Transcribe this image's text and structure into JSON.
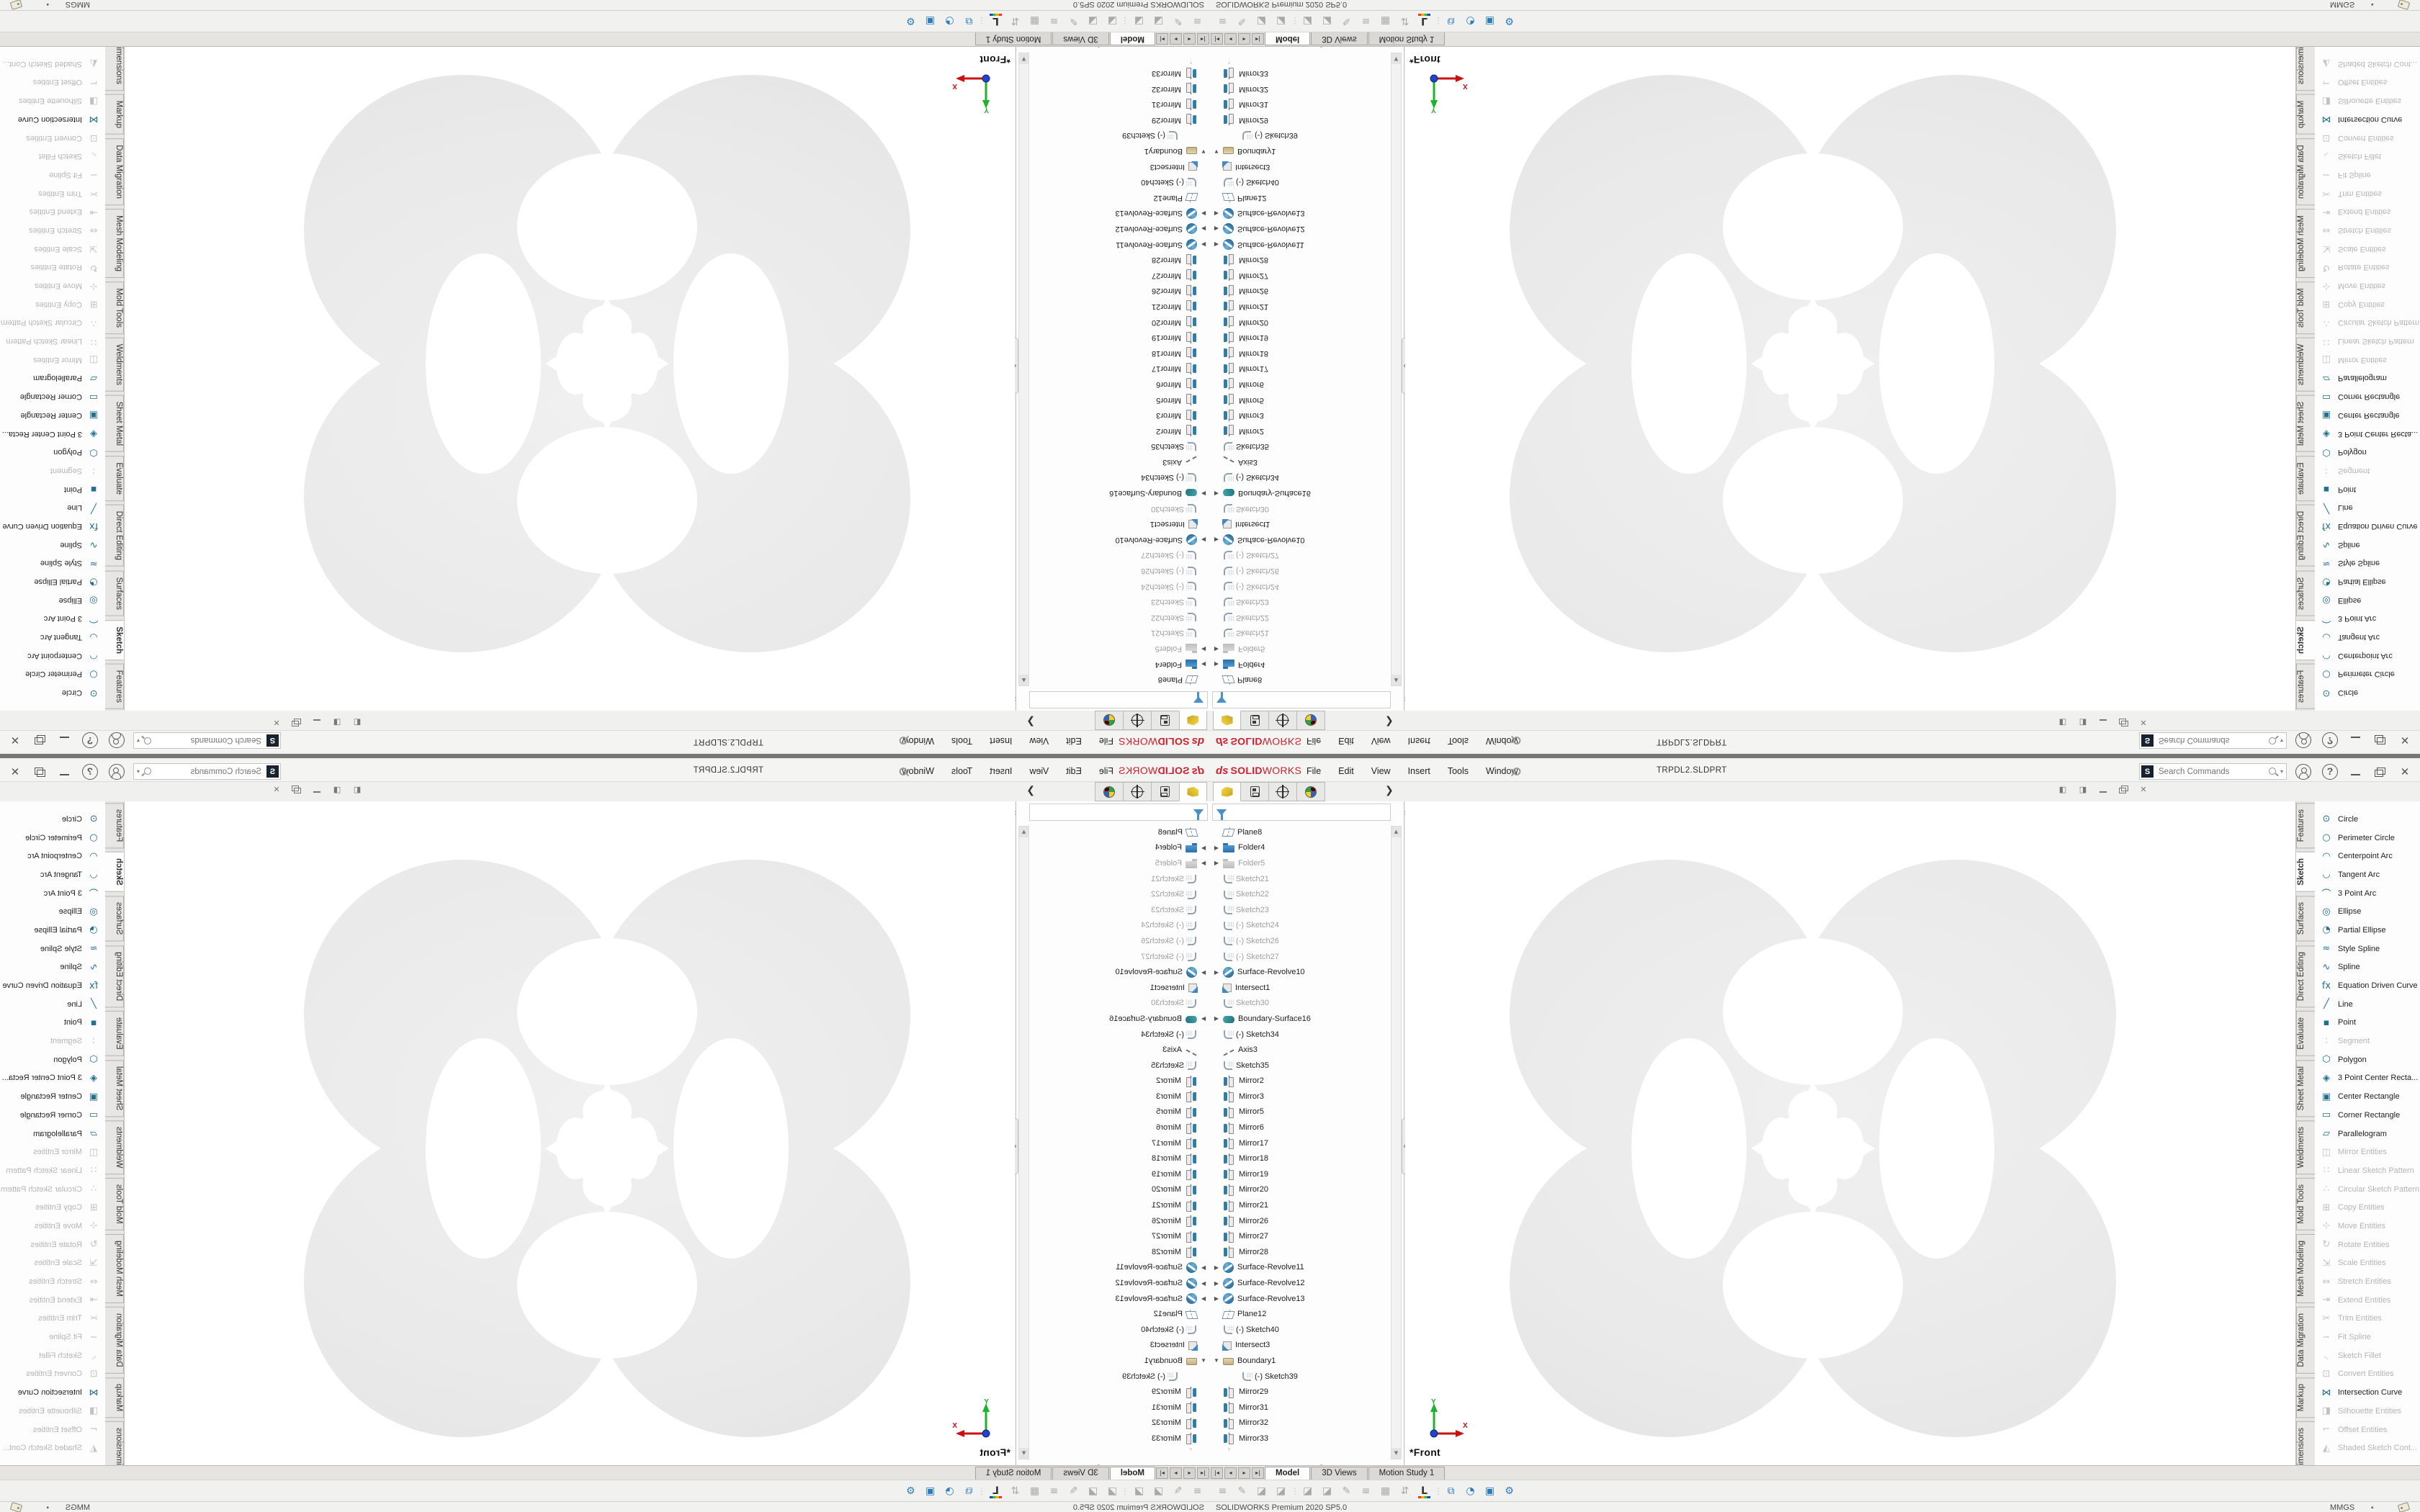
{
  "titlebar": {
    "logo_mark": "ds",
    "logo_solid": "SOLID",
    "logo_works": "WORKS",
    "menus": [
      "File",
      "Edit",
      "View",
      "Insert",
      "Tools",
      "Window"
    ],
    "filename": "TRPDL2.SLDPRT",
    "search_placeholder": "Search Commands",
    "window_buttons": [
      "minimize-button",
      "restore-button",
      "close-button"
    ]
  },
  "feature_tree": {
    "tabs": [
      {
        "name": "featuremanager-tab",
        "active": true
      },
      {
        "name": "propertymanager-tab",
        "active": false
      },
      {
        "name": "dimxpertmanager-tab",
        "active": false
      },
      {
        "name": "displaymanager-tab",
        "active": false
      }
    ],
    "flyout_arrow": "❯",
    "scroll_up": "▲",
    "scroll_down": "▼",
    "items": [
      {
        "label": "Plane8",
        "icon": "plane"
      },
      {
        "label": "Folder4",
        "icon": "folder",
        "arrow": "r"
      },
      {
        "label": "Folder5",
        "icon": "folder-gray",
        "arrow": "r",
        "dim": true
      },
      {
        "label": "Sketch21",
        "icon": "sketch",
        "dim": true
      },
      {
        "label": "Sketch22",
        "icon": "sketch",
        "dim": true
      },
      {
        "label": "Sketch23",
        "icon": "sketch",
        "dim": true
      },
      {
        "label": "(-) Sketch24",
        "icon": "sketch",
        "dim": true
      },
      {
        "label": "(-) Sketch26",
        "icon": "sketch",
        "dim": true
      },
      {
        "label": "(-) Sketch27",
        "icon": "sketch",
        "dim": true
      },
      {
        "label": "Surface-Revolve10",
        "icon": "revolve",
        "arrow": "r"
      },
      {
        "label": "Intersect1",
        "icon": "intersect"
      },
      {
        "label": "Sketch30",
        "icon": "sketch",
        "dim": true
      },
      {
        "label": "Boundary-Surface16",
        "icon": "bsurf",
        "arrow": "r"
      },
      {
        "label": "(-) Sketch34",
        "icon": "sketch"
      },
      {
        "label": "Axis3",
        "icon": "axis"
      },
      {
        "label": "Sketch35",
        "icon": "sketch"
      },
      {
        "label": "Mirror2",
        "icon": "mirror"
      },
      {
        "label": "Mirror3",
        "icon": "mirror"
      },
      {
        "label": "Mirror5",
        "icon": "mirror"
      },
      {
        "label": "Mirror6",
        "icon": "mirror"
      },
      {
        "label": "Mirror17",
        "icon": "mirror"
      },
      {
        "label": "Mirror18",
        "icon": "mirror"
      },
      {
        "label": "Mirror19",
        "icon": "mirror"
      },
      {
        "label": "Mirror20",
        "icon": "mirror"
      },
      {
        "label": "Mirror21",
        "icon": "mirror"
      },
      {
        "label": "Mirror26",
        "icon": "mirror"
      },
      {
        "label": "Mirror27",
        "icon": "mirror"
      },
      {
        "label": "Mirror28",
        "icon": "mirror"
      },
      {
        "label": "Surface-Revolve11",
        "icon": "revolve",
        "arrow": "r"
      },
      {
        "label": "Surface-Revolve12",
        "icon": "revolve",
        "arrow": "r"
      },
      {
        "label": "Surface-Revolve13",
        "icon": "revolve",
        "arrow": "r"
      },
      {
        "label": "Plane12",
        "icon": "plane"
      },
      {
        "label": "(-) Sketch40",
        "icon": "sketch"
      },
      {
        "label": "Intersect3",
        "icon": "intersect"
      },
      {
        "label": "Boundary1",
        "icon": "boundary",
        "arrow": "d"
      },
      {
        "label": "(-) Sketch39",
        "icon": "sketch",
        "sub": true
      },
      {
        "label": "Mirror29",
        "icon": "mirror"
      },
      {
        "label": "Mirror31",
        "icon": "mirror"
      },
      {
        "label": "Mirror32",
        "icon": "mirror"
      },
      {
        "label": "Mirror33",
        "icon": "mirror"
      },
      {
        "label": "",
        "icon": "mirror",
        "partial": true
      }
    ]
  },
  "command_icons": [
    {
      "name": "save-icon",
      "glyph": "▤",
      "color": "#41729f"
    },
    {
      "name": "run-document-icon",
      "glyph": "▷",
      "color": "#808080"
    },
    {
      "name": "dropdown-caret-icon",
      "glyph": "▾",
      "color": "#666666",
      "small": true
    },
    {
      "name": "view-front-cube-icon",
      "glyph": "◧",
      "color": "#6fa8cc",
      "pressed": true
    },
    {
      "name": "view-back-cube-icon",
      "glyph": "◱",
      "color": "#6fa8cc"
    },
    {
      "name": "view-left-cube-icon",
      "glyph": "◰",
      "color": "#6fa8cc"
    },
    {
      "name": "view-right-cube-icon",
      "glyph": "◳",
      "color": "#6fa8cc"
    },
    {
      "name": "view-top-cube-icon",
      "glyph": "◲",
      "color": "#6fa8cc"
    },
    {
      "name": "view-bottom-cube-icon",
      "glyph": "◫",
      "color": "#6fa8cc"
    },
    {
      "name": "view-iso-cube-icon",
      "glyph": "⬓",
      "color": "#6fa8cc"
    },
    {
      "name": "view-isometric-icon",
      "glyph": "◆",
      "color": "#8cbcd9"
    },
    {
      "name": "view-dimetric-icon",
      "glyph": "◇",
      "color": "#8cbcd9"
    },
    {
      "name": "view-trimetric-icon",
      "glyph": "◆",
      "color": "#b7d3e6"
    },
    {
      "name": "normal-to-icon",
      "glyph": "⇩",
      "color": "#6fa8cc"
    },
    {
      "name": "display-update-icon",
      "glyph": "⟳",
      "color": "#888888"
    },
    {
      "name": "section-view-icon",
      "glyph": "◐",
      "color": "#8cbcd9"
    },
    {
      "name": "appearance-sphere-icon",
      "glyph": "◉",
      "color": "#87b7d7"
    },
    {
      "name": "gap",
      "gap": true
    },
    {
      "name": "3d-drawing-view-icon",
      "glyph": "3D",
      "color": "#666666",
      "text": true
    },
    {
      "name": "separator",
      "sep": true
    },
    {
      "name": "sketch-pencil-icon",
      "glyph": "✎",
      "color": "#aaaaaa"
    },
    {
      "name": "sketch-arc-icon",
      "glyph": "◠",
      "color": "#aaaaaa"
    },
    {
      "name": "sketch-spline-icon",
      "glyph": "∿",
      "color": "#aaaaaa"
    },
    {
      "name": "sketch-circle-icon",
      "glyph": "○",
      "color": "#aaaaaa"
    },
    {
      "name": "sketch-point-icon",
      "glyph": "+",
      "color": "#aaaaaa"
    },
    {
      "name": "rapid-sketch-icon",
      "glyph": "30",
      "color": "#444444",
      "pressed": true,
      "text": true
    },
    {
      "name": "arcs-icon",
      "glyph": ") (",
      "color": "#999999",
      "text": true
    },
    {
      "name": "instant3d-icon",
      "glyph": "9",
      "color": "#999999",
      "text": true
    },
    {
      "name": "grid-icon",
      "glyph": "▦",
      "color": "#6b6b6b",
      "pressed": true
    },
    {
      "name": "orientation-sphere-icon",
      "glyph": "◍",
      "color": "#888888"
    },
    {
      "name": "dropdown-caret-icon",
      "glyph": "▾",
      "color": "#666666",
      "small": true
    },
    {
      "name": "motion-sphere-icon",
      "glyph": "✹",
      "color": "#666666",
      "pressed": true
    },
    {
      "name": "appearance-egg-icon",
      "glyph": "●",
      "color": "#3e88c0"
    },
    {
      "name": "scene-sphere-icon",
      "glyph": "◕",
      "color": "#888888"
    },
    {
      "name": "camera-cylinder-icon",
      "glyph": "⬒",
      "color": "#8cbcd9"
    }
  ],
  "doc_controls": [
    "doc-pane-left-icon",
    "doc-pane-right-icon",
    "doc-minimize-button",
    "doc-restore-button",
    "doc-close-button"
  ],
  "graphics": {
    "view_label": "*Front",
    "triad_x_label": "X",
    "triad_y_label": "Y"
  },
  "sidebar_panel": {
    "items": [
      {
        "label": "Circle",
        "glyph": "⊙",
        "enabled": true
      },
      {
        "label": "Perimeter Circle",
        "glyph": "○",
        "enabled": true
      },
      {
        "label": "Centerpoint Arc",
        "glyph": "◠",
        "enabled": true
      },
      {
        "label": "Tangent Arc",
        "glyph": "◡",
        "enabled": true
      },
      {
        "label": "3 Point Arc",
        "glyph": "⌒",
        "enabled": true
      },
      {
        "label": "Ellipse",
        "glyph": "◎",
        "enabled": true
      },
      {
        "label": "Partial Ellipse",
        "glyph": "◔",
        "enabled": true
      },
      {
        "label": "Style Spline",
        "glyph": "≈",
        "enabled": true
      },
      {
        "label": "Spline",
        "glyph": "∿",
        "enabled": true
      },
      {
        "label": "Equation Driven Curve",
        "glyph": "fx",
        "enabled": true
      },
      {
        "label": "Line",
        "glyph": "╱",
        "enabled": true
      },
      {
        "label": "Point",
        "glyph": "▪",
        "enabled": true
      },
      {
        "label": "Segment",
        "glyph": "∶",
        "enabled": false
      },
      {
        "label": "Polygon",
        "glyph": "⬡",
        "enabled": true
      },
      {
        "label": "3 Point Center Recta...",
        "glyph": "◈",
        "enabled": true
      },
      {
        "label": "Center Rectangle",
        "glyph": "▣",
        "enabled": true
      },
      {
        "label": "Corner Rectangle",
        "glyph": "▭",
        "enabled": true
      },
      {
        "label": "Parallelogram",
        "glyph": "▱",
        "enabled": true
      },
      {
        "label": "Mirror Entities",
        "glyph": "◫",
        "enabled": false
      },
      {
        "label": "Linear Sketch Pattern",
        "glyph": "∷",
        "enabled": false
      },
      {
        "label": "Circular Sketch Pattern",
        "glyph": "∴",
        "enabled": false
      },
      {
        "label": "Copy Entities",
        "glyph": "⊞",
        "enabled": false
      },
      {
        "label": "Move Entities",
        "glyph": "⊹",
        "enabled": false
      },
      {
        "label": "Rotate Entities",
        "glyph": "↻",
        "enabled": false
      },
      {
        "label": "Scale Entities",
        "glyph": "⇲",
        "enabled": false
      },
      {
        "label": "Stretch Entities",
        "glyph": "⇔",
        "enabled": false
      },
      {
        "label": "Extend Entities",
        "glyph": "⇥",
        "enabled": false
      },
      {
        "label": "Trim Entities",
        "glyph": "✂",
        "enabled": false
      },
      {
        "label": "Fit Spline",
        "glyph": "∽",
        "enabled": false
      },
      {
        "label": "Sketch Fillet",
        "glyph": "◟",
        "enabled": false
      },
      {
        "label": "Convert Entities",
        "glyph": "⊡",
        "enabled": false
      },
      {
        "label": "Intersection Curve",
        "glyph": "⋈",
        "enabled": true
      },
      {
        "label": "Silhouette Entities",
        "glyph": "◨",
        "enabled": false
      },
      {
        "label": "Offset Entities",
        "glyph": "⌐",
        "enabled": false
      },
      {
        "label": "Shaded Sketch Cont...",
        "glyph": "◭",
        "enabled": false
      }
    ]
  },
  "command_manager_tabs": [
    {
      "label": "Features",
      "active": false
    },
    {
      "label": "Sketch",
      "active": true
    },
    {
      "label": "Surfaces",
      "active": false
    },
    {
      "label": "Direct Editing",
      "active": false
    },
    {
      "label": "Evaluate",
      "active": false
    },
    {
      "label": "Sheet Metal",
      "active": false
    },
    {
      "label": "Weldments",
      "active": false
    },
    {
      "label": "Mold Tools",
      "active": false
    },
    {
      "label": "Mesh Modeling",
      "active": false
    },
    {
      "label": "Data Migration",
      "active": false
    },
    {
      "label": "Markup",
      "active": false
    },
    {
      "label": "MBD Dimensions",
      "active": false
    },
    {
      "label": "...",
      "active": false
    }
  ],
  "document_tabs": {
    "scroll_buttons": [
      "|◂",
      "◂",
      "▸",
      "▸|"
    ],
    "tabs": [
      {
        "label": "Model",
        "active": true
      },
      {
        "label": "3D Views",
        "active": false
      },
      {
        "label": "Motion Study 1",
        "active": false
      }
    ]
  },
  "bottom_toolbar": [
    {
      "name": "lines-icon",
      "glyph": "≡"
    },
    {
      "name": "pencil-icon",
      "glyph": "✎"
    },
    {
      "name": "surface-icon",
      "glyph": "◪"
    },
    {
      "name": "surface-icon",
      "glyph": "◪"
    },
    {
      "name": "grip-separator",
      "glyph": "⋮",
      "sep": true
    },
    {
      "name": "surface-icon",
      "glyph": "◪"
    },
    {
      "name": "surface-icon",
      "glyph": "◪"
    },
    {
      "name": "eraser-icon",
      "glyph": "✎"
    },
    {
      "name": "lines-icon",
      "glyph": "≡"
    },
    {
      "name": "table-icon",
      "glyph": "▦"
    },
    {
      "name": "update-icon",
      "glyph": "⇵"
    },
    {
      "name": "appearance-editor-icon",
      "glyph": "L",
      "rainbow": true
    },
    {
      "name": "grip-separator",
      "glyph": "⋮",
      "sep": true
    },
    {
      "name": "compare-windows-icon",
      "glyph": "⧉",
      "blue": true
    },
    {
      "name": "schedule-icon",
      "glyph": "◔",
      "blue": true
    },
    {
      "name": "folder-check-icon",
      "glyph": "▣",
      "blue": true
    },
    {
      "name": "settings-gear-icon",
      "glyph": "⚙",
      "blue": true
    }
  ],
  "statusbar": {
    "app_version": "SOLIDWORKS Premium 2020 SP5.0",
    "units": "MMGS",
    "units_caret": "▴"
  }
}
